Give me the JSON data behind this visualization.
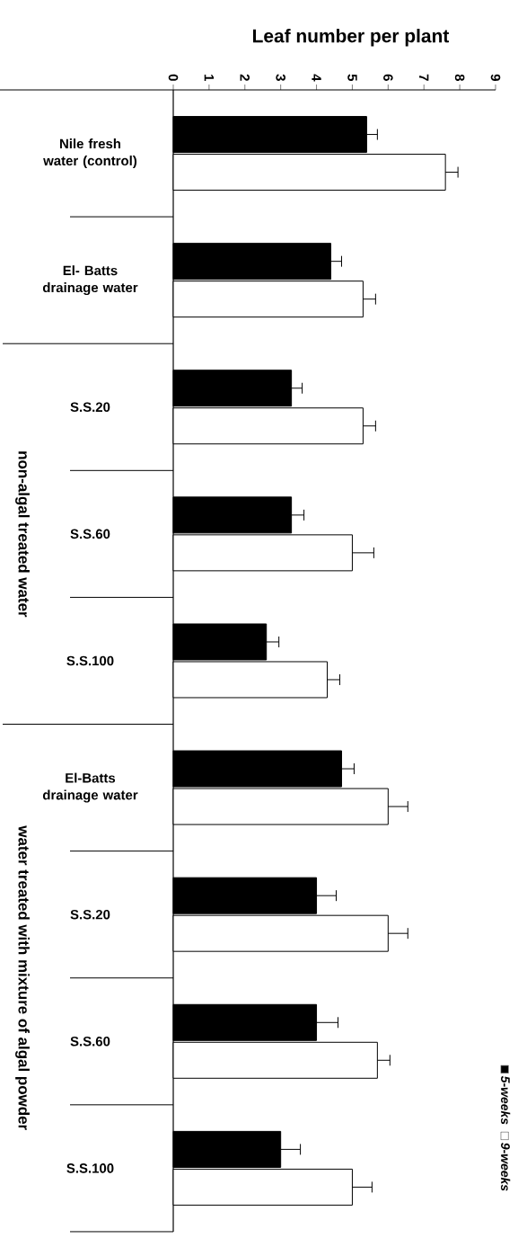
{
  "chart_data": {
    "type": "bar",
    "orientation": "horizontal",
    "xlabel": "Leaf number per plant",
    "categories": [
      "Nile fresh water (control)",
      "El- Batts drainage water",
      "S.S.20",
      "S.S.60",
      "S.S.100",
      "El-Batts drainage water",
      "S.S.20",
      "S.S.60",
      "S.S.100"
    ],
    "series": [
      {
        "name": "5-weeks",
        "color": "#000000",
        "values": [
          5.4,
          4.4,
          3.3,
          3.3,
          2.6,
          4.7,
          4.0,
          4.0,
          3.0
        ],
        "errors": [
          [
            5.4,
            5.7
          ],
          [
            4.4,
            4.7
          ],
          [
            3.3,
            3.6
          ],
          [
            3.3,
            3.65
          ],
          [
            2.6,
            2.95
          ],
          [
            4.7,
            5.05
          ],
          [
            4.0,
            4.55
          ],
          [
            4.0,
            4.6
          ],
          [
            3.0,
            3.55
          ]
        ]
      },
      {
        "name": "9-weeks",
        "color": "#ffffff",
        "values": [
          7.6,
          5.3,
          5.3,
          5.0,
          4.3,
          6.0,
          6.0,
          5.7,
          5.0
        ],
        "errors": [
          [
            7.6,
            7.95
          ],
          [
            5.3,
            5.65
          ],
          [
            5.3,
            5.65
          ],
          [
            5.0,
            5.6
          ],
          [
            4.3,
            4.65
          ],
          [
            6.0,
            6.55
          ],
          [
            6.0,
            6.55
          ],
          [
            5.7,
            6.05
          ],
          [
            5.0,
            5.55
          ]
        ]
      }
    ],
    "xlim": [
      0,
      9
    ],
    "xticks": [
      0,
      1,
      2,
      3,
      4,
      5,
      6,
      7,
      8,
      9
    ],
    "legend": "bottom right",
    "annotations": [
      "non-algal treated water",
      "water treated with mixture of algal powder"
    ]
  }
}
